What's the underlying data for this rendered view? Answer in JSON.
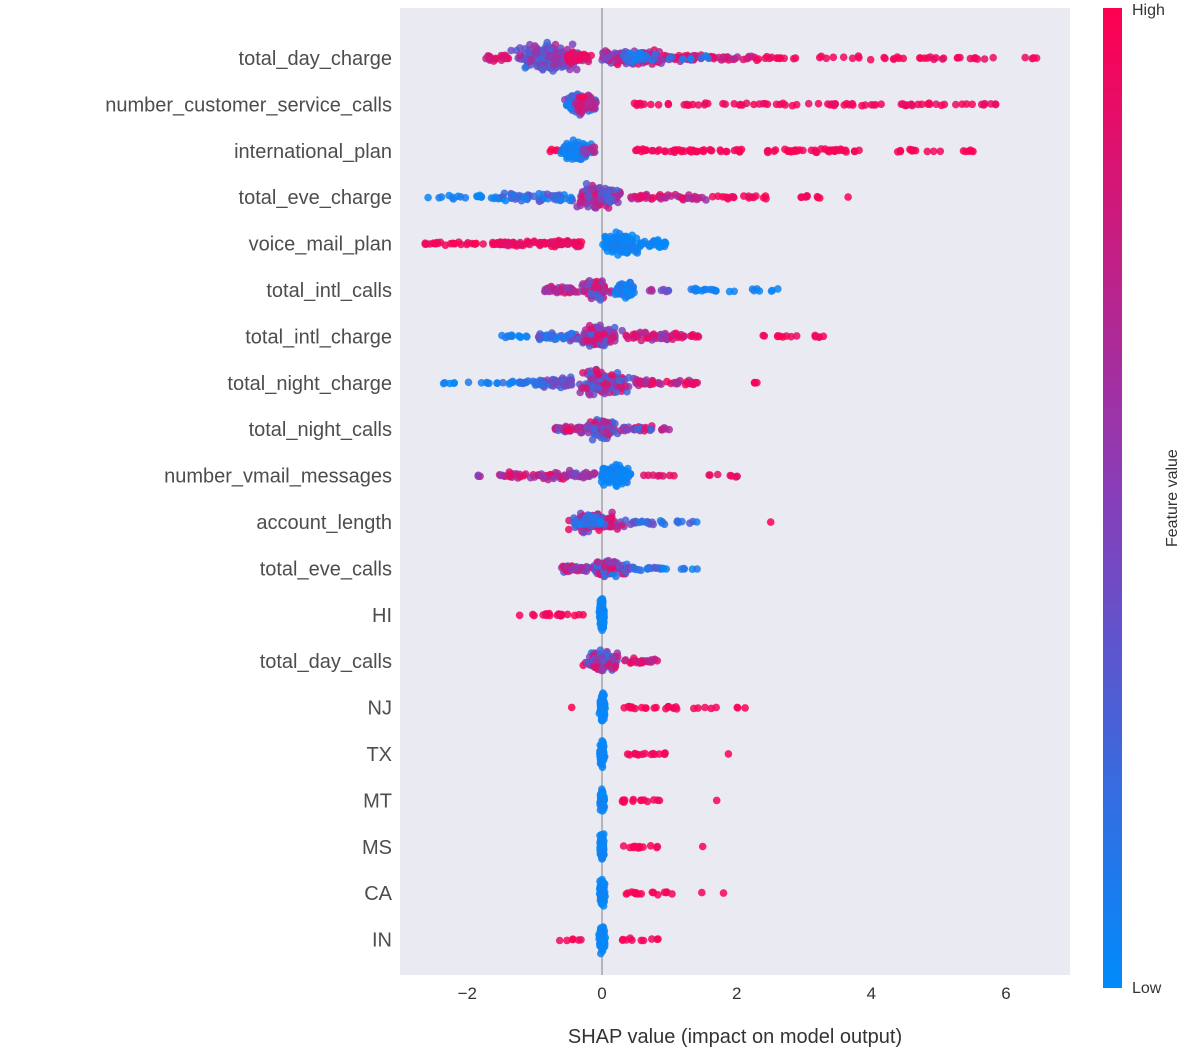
{
  "chart_data": {
    "type": "scatter",
    "variant": "shap-beeswarm-summary",
    "title": "",
    "xlabel": "SHAP value (impact on model output)",
    "xlim": [
      -3.0,
      6.95
    ],
    "xticks": [
      -2,
      0,
      2,
      4,
      6
    ],
    "xtick_labels": [
      "−2",
      "0",
      "2",
      "4",
      "6"
    ],
    "zero_line_x": 0,
    "grid": false,
    "plot_bg": "#eaeaf2",
    "zero_line_color": "#999999",
    "point_color_low": "#008bfb",
    "point_color_mid": "#873eb9",
    "point_color_high": "#ff0051",
    "point_radius": 3.8,
    "point_opacity": 0.85,
    "colorbar": {
      "label": "Feature value",
      "high": "High",
      "low": "Low"
    },
    "cluster_format": [
      "x_min",
      "x_max",
      "n_points",
      "color_t_min",
      "color_t_max",
      "y_spread_px",
      "x_dist(g=gaussian,u=uniform)"
    ],
    "features": [
      {
        "label": "total_day_charge",
        "clusters": [
          [
            -1.75,
            -1.3,
            22,
            0.75,
            1.0,
            3,
            "u"
          ],
          [
            -1.35,
            -0.2,
            200,
            0.15,
            0.75,
            13,
            "g"
          ],
          [
            -0.55,
            -0.15,
            30,
            0.8,
            1.0,
            6,
            "u"
          ],
          [
            0.0,
            0.95,
            110,
            0.35,
            1.0,
            7,
            "u"
          ],
          [
            0.3,
            0.8,
            25,
            0.0,
            0.3,
            5,
            "u"
          ],
          [
            0.95,
            2.3,
            55,
            0.6,
            1.0,
            3,
            "u"
          ],
          [
            1.0,
            1.6,
            10,
            0.0,
            0.3,
            2,
            "u"
          ],
          [
            2.3,
            6.5,
            50,
            0.9,
            1.0,
            1.6,
            "u"
          ]
        ]
      },
      {
        "label": "number_customer_service_calls",
        "clusters": [
          [
            -0.6,
            -0.05,
            120,
            0.0,
            0.55,
            9,
            "g"
          ],
          [
            -0.45,
            -0.05,
            40,
            0.6,
            1.0,
            8,
            "g"
          ],
          [
            0.45,
            1.2,
            10,
            0.85,
            1.0,
            1.5,
            "u"
          ],
          [
            1.2,
            5.0,
            60,
            0.88,
            1.0,
            1.6,
            "u"
          ],
          [
            5.0,
            5.85,
            12,
            0.9,
            1.0,
            1.5,
            "u"
          ]
        ]
      },
      {
        "label": "international_plan",
        "clusters": [
          [
            -0.8,
            -0.55,
            8,
            0.8,
            1.0,
            2,
            "u"
          ],
          [
            -0.62,
            -0.12,
            150,
            0.0,
            0.12,
            8,
            "g"
          ],
          [
            -0.3,
            -0.1,
            15,
            0.4,
            0.8,
            4,
            "u"
          ],
          [
            0.5,
            2.1,
            48,
            0.93,
            1.0,
            1.8,
            "u"
          ],
          [
            2.45,
            4.05,
            40,
            0.93,
            1.0,
            1.6,
            "u"
          ],
          [
            4.35,
            5.15,
            12,
            0.93,
            1.0,
            1.4,
            "u"
          ],
          [
            5.3,
            5.65,
            6,
            0.93,
            1.0,
            1.2,
            "u"
          ]
        ]
      },
      {
        "label": "total_eve_charge",
        "clusters": [
          [
            -2.6,
            -1.55,
            18,
            0.0,
            0.15,
            1.8,
            "u"
          ],
          [
            -1.55,
            -0.4,
            55,
            0.0,
            0.45,
            4,
            "u"
          ],
          [
            -0.45,
            0.35,
            160,
            0.2,
            0.95,
            11,
            "g"
          ],
          [
            0.4,
            1.55,
            45,
            0.55,
            1.0,
            3,
            "u"
          ],
          [
            1.6,
            2.6,
            18,
            0.9,
            1.0,
            1.6,
            "u"
          ],
          [
            2.7,
            3.3,
            8,
            0.92,
            1.0,
            1.3,
            "u"
          ],
          [
            3.6,
            3.7,
            1,
            1.0,
            1.0,
            0.5,
            "u"
          ]
        ]
      },
      {
        "label": "voice_mail_plan",
        "clusters": [
          [
            -2.65,
            -1.6,
            28,
            0.9,
            1.0,
            1.6,
            "u"
          ],
          [
            -1.6,
            -0.9,
            40,
            0.85,
            1.0,
            2.5,
            "u"
          ],
          [
            -0.95,
            -0.3,
            45,
            0.85,
            1.0,
            3,
            "u"
          ],
          [
            -0.08,
            0.6,
            170,
            0.0,
            0.1,
            9,
            "g"
          ],
          [
            0.55,
            0.95,
            30,
            0.0,
            0.1,
            4,
            "u"
          ]
        ]
      },
      {
        "label": "total_intl_calls",
        "clusters": [
          [
            -0.85,
            -0.35,
            45,
            0.45,
            1.0,
            3.5,
            "u"
          ],
          [
            -0.35,
            0.18,
            100,
            0.15,
            0.9,
            8,
            "g"
          ],
          [
            0.15,
            0.55,
            80,
            0.0,
            0.15,
            7,
            "g"
          ],
          [
            0.6,
            1.05,
            8,
            0.3,
            0.7,
            2,
            "u"
          ],
          [
            1.3,
            2.05,
            16,
            0.0,
            0.12,
            2,
            "u"
          ],
          [
            2.2,
            2.65,
            7,
            0.0,
            0.12,
            1.4,
            "u"
          ]
        ]
      },
      {
        "label": "total_intl_charge",
        "clusters": [
          [
            -1.55,
            -0.95,
            12,
            0.0,
            0.12,
            1.5,
            "u"
          ],
          [
            -0.95,
            -0.35,
            40,
            0.0,
            0.5,
            3.5,
            "u"
          ],
          [
            -0.38,
            0.3,
            140,
            0.2,
            0.95,
            10,
            "g"
          ],
          [
            0.35,
            1.1,
            45,
            0.5,
            1.0,
            4,
            "u"
          ],
          [
            1.1,
            1.55,
            12,
            0.7,
            1.0,
            2,
            "u"
          ],
          [
            2.3,
            3.3,
            14,
            0.88,
            1.0,
            1.5,
            "u"
          ]
        ]
      },
      {
        "label": "total_night_charge",
        "clusters": [
          [
            -2.45,
            -1.6,
            10,
            0.0,
            0.12,
            1.4,
            "u"
          ],
          [
            -1.6,
            -0.85,
            30,
            0.0,
            0.25,
            2.5,
            "u"
          ],
          [
            -0.9,
            -0.45,
            45,
            0.1,
            0.6,
            5,
            "u"
          ],
          [
            -0.45,
            0.5,
            180,
            0.2,
            0.95,
            12,
            "g"
          ],
          [
            0.5,
            1.5,
            42,
            0.6,
            1.0,
            3,
            "u"
          ],
          [
            2.25,
            2.4,
            3,
            0.95,
            1.0,
            1,
            "u"
          ]
        ]
      },
      {
        "label": "total_night_calls",
        "clusters": [
          [
            -0.7,
            -0.25,
            40,
            0.2,
            1.0,
            3.5,
            "u"
          ],
          [
            -0.28,
            0.3,
            120,
            0.1,
            0.95,
            8.5,
            "g"
          ],
          [
            0.3,
            0.75,
            25,
            0.2,
            1.0,
            2.5,
            "u"
          ],
          [
            0.8,
            1.0,
            6,
            0.3,
            0.9,
            1.5,
            "u"
          ]
        ]
      },
      {
        "label": "number_vmail_messages",
        "clusters": [
          [
            -1.85,
            -1.45,
            7,
            0.45,
            0.85,
            1.6,
            "u"
          ],
          [
            -1.45,
            -0.55,
            45,
            0.5,
            1.0,
            3.5,
            "u"
          ],
          [
            -0.6,
            -0.1,
            28,
            0.3,
            0.85,
            4,
            "u"
          ],
          [
            -0.08,
            0.45,
            160,
            0.0,
            0.1,
            8.5,
            "g"
          ],
          [
            0.5,
            1.1,
            8,
            0.8,
            1.0,
            1.5,
            "u"
          ],
          [
            1.3,
            2.1,
            7,
            0.85,
            1.0,
            1.3,
            "u"
          ]
        ]
      },
      {
        "label": "account_length",
        "clusters": [
          [
            -0.5,
            0.35,
            140,
            0.25,
            1.0,
            8,
            "g"
          ],
          [
            -0.45,
            0.0,
            25,
            0.0,
            0.25,
            6,
            "u"
          ],
          [
            0.4,
            1.0,
            22,
            0.0,
            0.5,
            2.5,
            "u"
          ],
          [
            1.05,
            1.5,
            7,
            0.0,
            0.35,
            1.4,
            "u"
          ],
          [
            2.45,
            2.55,
            1,
            0.95,
            1.0,
            0.5,
            "u"
          ]
        ]
      },
      {
        "label": "total_eve_calls",
        "clusters": [
          [
            -0.6,
            -0.2,
            35,
            0.2,
            1.0,
            4,
            "u"
          ],
          [
            -0.22,
            0.4,
            120,
            0.1,
            1.0,
            7,
            "g"
          ],
          [
            0.45,
            1.0,
            18,
            0.0,
            0.35,
            2,
            "u"
          ],
          [
            1.1,
            1.5,
            5,
            0.0,
            0.25,
            1.2,
            "u"
          ]
        ]
      },
      {
        "label": "HI",
        "clusters": [
          [
            -1.25,
            -0.75,
            9,
            0.9,
            1.0,
            1.4,
            "u"
          ],
          [
            -0.7,
            -0.28,
            13,
            0.9,
            1.0,
            1.5,
            "u"
          ],
          [
            -0.04,
            0.04,
            130,
            0.0,
            0.08,
            13,
            "g"
          ]
        ]
      },
      {
        "label": "total_day_calls",
        "clusters": [
          [
            -0.28,
            0.28,
            150,
            0.1,
            0.95,
            9,
            "g"
          ],
          [
            0.28,
            0.85,
            25,
            0.65,
            1.0,
            2.5,
            "u"
          ]
        ]
      },
      {
        "label": "NJ",
        "clusters": [
          [
            -0.48,
            -0.42,
            1,
            0.95,
            1.0,
            0.5,
            "u"
          ],
          [
            -0.04,
            0.05,
            120,
            0.0,
            0.08,
            12,
            "g"
          ],
          [
            0.3,
            1.15,
            20,
            0.92,
            1.0,
            1.6,
            "u"
          ],
          [
            1.35,
            1.7,
            5,
            0.92,
            1.0,
            1.2,
            "u"
          ],
          [
            2.0,
            2.25,
            3,
            0.92,
            1.0,
            1,
            "u"
          ]
        ]
      },
      {
        "label": "TX",
        "clusters": [
          [
            -0.04,
            0.04,
            120,
            0.0,
            0.08,
            11,
            "g"
          ],
          [
            0.3,
            0.95,
            15,
            0.92,
            1.0,
            1.5,
            "u"
          ],
          [
            1.8,
            1.9,
            1,
            0.95,
            1.0,
            0.5,
            "u"
          ]
        ]
      },
      {
        "label": "MT",
        "clusters": [
          [
            -0.04,
            0.04,
            120,
            0.0,
            0.08,
            11,
            "g"
          ],
          [
            0.3,
            0.95,
            14,
            0.92,
            1.0,
            1.5,
            "u"
          ],
          [
            1.65,
            1.75,
            1,
            0.95,
            1.0,
            0.5,
            "u"
          ]
        ]
      },
      {
        "label": "MS",
        "clusters": [
          [
            -0.04,
            0.04,
            120,
            0.0,
            0.08,
            11,
            "g"
          ],
          [
            0.28,
            0.85,
            13,
            0.92,
            1.0,
            1.5,
            "u"
          ],
          [
            1.45,
            1.55,
            1,
            0.95,
            1.0,
            0.5,
            "u"
          ]
        ]
      },
      {
        "label": "CA",
        "clusters": [
          [
            -0.04,
            0.05,
            115,
            0.0,
            0.08,
            11,
            "g"
          ],
          [
            0.35,
            1.05,
            16,
            0.92,
            1.0,
            1.5,
            "u"
          ],
          [
            1.4,
            1.5,
            1,
            0.95,
            1.0,
            0.5,
            "u"
          ],
          [
            1.75,
            1.85,
            1,
            0.95,
            1.0,
            0.5,
            "u"
          ]
        ]
      },
      {
        "label": "IN",
        "clusters": [
          [
            -0.75,
            -0.3,
            6,
            0.9,
            1.0,
            1.2,
            "u"
          ],
          [
            -0.05,
            0.05,
            120,
            0.0,
            0.08,
            12,
            "g"
          ],
          [
            0.3,
            0.95,
            10,
            0.9,
            1.0,
            1.4,
            "u"
          ]
        ]
      }
    ]
  }
}
